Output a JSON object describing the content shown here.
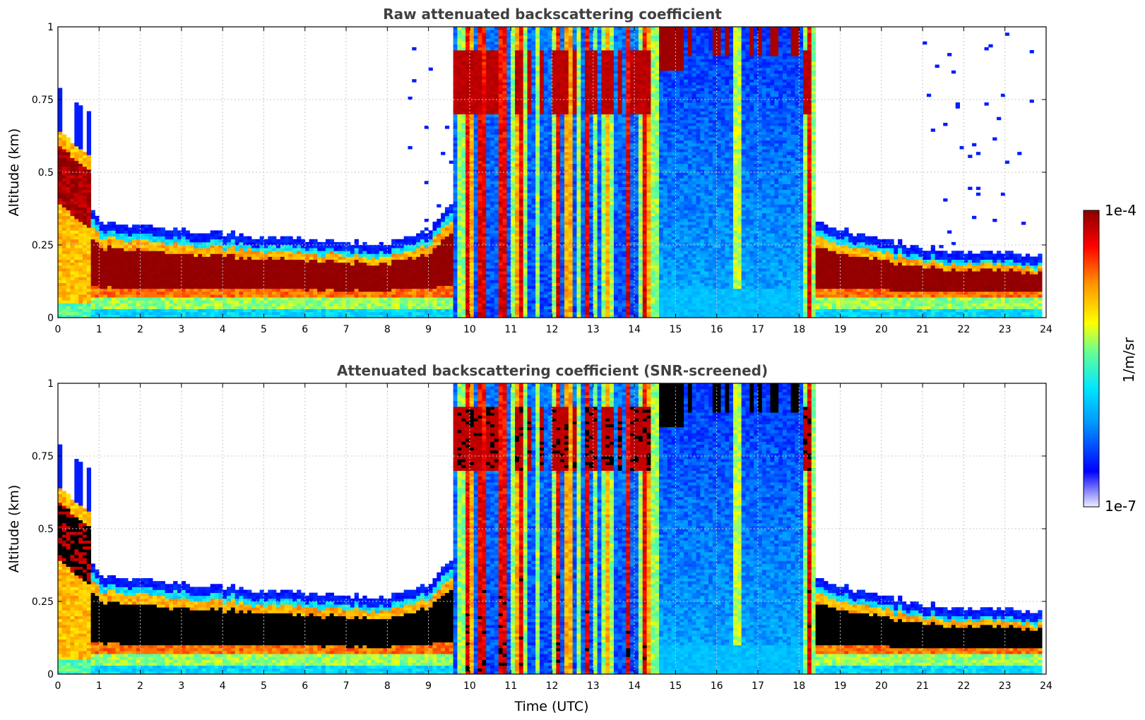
{
  "colors": {
    "title": "#404040",
    "grid": "#c8c8c8",
    "black_saturation": "#000000",
    "colormap": [
      "#eeeeff",
      "#0000ff",
      "#0096ff",
      "#00e6ff",
      "#64ff96",
      "#ffff00",
      "#ff9600",
      "#ff0000",
      "#8b0000"
    ]
  },
  "colorbar": {
    "label": "1/m/sr",
    "max_label": "1e-4",
    "min_label": "1e-7",
    "scale": "log",
    "range": [
      1e-07,
      0.0001
    ]
  },
  "chart_data": [
    {
      "type": "heatmap",
      "title": "Raw attenuated backscattering coefficient",
      "xlabel": "",
      "ylabel": "Altitude (km)",
      "xlim": [
        0,
        24
      ],
      "ylim": [
        0,
        1
      ],
      "xticks": [
        "0",
        "1",
        "2",
        "3",
        "4",
        "5",
        "6",
        "7",
        "8",
        "9",
        "10",
        "11",
        "12",
        "13",
        "14",
        "15",
        "16",
        "17",
        "18",
        "19",
        "20",
        "21",
        "22",
        "23",
        "24"
      ],
      "yticks": [
        "0",
        "0.25",
        "0.5",
        "0.75",
        "1"
      ],
      "grid": true,
      "screened": false,
      "boundary_layer_top_km": {
        "time_utc": [
          0,
          1,
          2,
          3,
          4,
          5,
          6,
          7,
          8,
          9,
          9.5,
          18.5,
          19,
          20,
          21,
          22,
          23,
          23.8
        ],
        "top": [
          0.55,
          0.3,
          0.29,
          0.27,
          0.26,
          0.25,
          0.24,
          0.23,
          0.22,
          0.27,
          0.35,
          0.3,
          0.27,
          0.24,
          0.21,
          0.2,
          0.19,
          0.18
        ]
      }
    },
    {
      "type": "heatmap",
      "title": "Attenuated backscattering coefficient (SNR-screened)",
      "xlabel": "Time (UTC)",
      "ylabel": "Altitude (km)",
      "xlim": [
        0,
        24
      ],
      "ylim": [
        0,
        1
      ],
      "xticks": [
        "0",
        "1",
        "2",
        "3",
        "4",
        "5",
        "6",
        "7",
        "8",
        "9",
        "10",
        "11",
        "12",
        "13",
        "14",
        "15",
        "16",
        "17",
        "18",
        "19",
        "20",
        "21",
        "22",
        "23",
        "24"
      ],
      "yticks": [
        "0",
        "0.25",
        "0.5",
        "0.75",
        "1"
      ],
      "grid": true,
      "screened": true,
      "boundary_layer_top_km": {
        "time_utc": [
          0,
          1,
          2,
          3,
          4,
          5,
          6,
          7,
          8,
          9,
          9.5,
          18.5,
          19,
          20,
          21,
          22,
          23,
          23.8
        ],
        "top": [
          0.55,
          0.31,
          0.3,
          0.28,
          0.27,
          0.26,
          0.25,
          0.24,
          0.23,
          0.28,
          0.35,
          0.3,
          0.27,
          0.24,
          0.21,
          0.2,
          0.19,
          0.18
        ]
      }
    }
  ]
}
